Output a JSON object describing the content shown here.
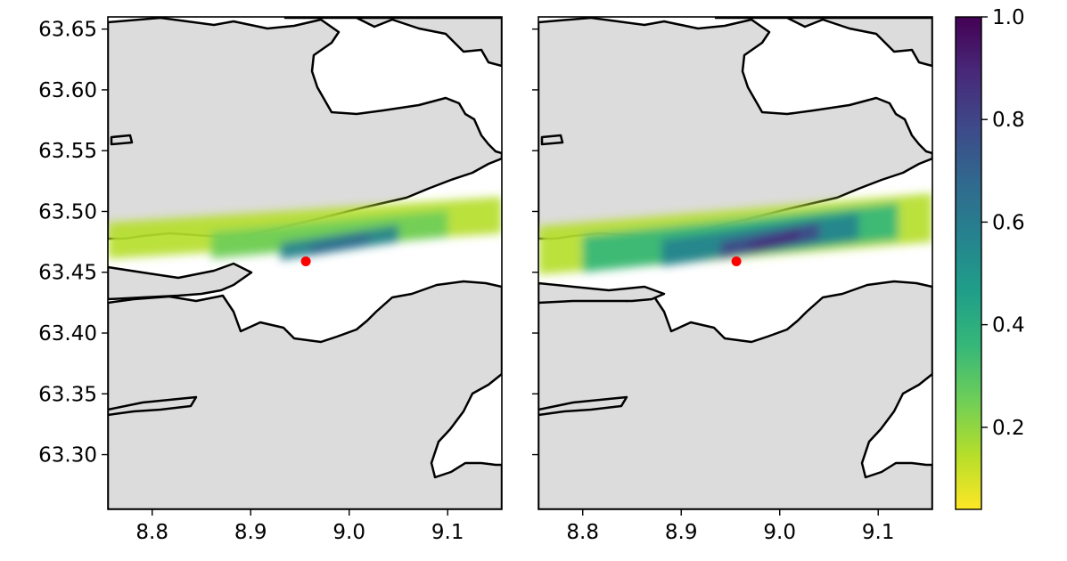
{
  "chart_data": [
    {
      "type": "heatmap",
      "panel": "left",
      "xlim": [
        8.755,
        9.155
      ],
      "ylim": [
        63.255,
        63.66
      ],
      "xticks": [
        8.8,
        8.9,
        9.0,
        9.1
      ],
      "xtick_labels": [
        "8.8",
        "8.9",
        "9.0",
        "9.1"
      ],
      "yticks": [
        63.3,
        63.35,
        63.4,
        63.45,
        63.5,
        63.55,
        63.6,
        63.65
      ],
      "ytick_labels": [
        "63.30",
        "63.35",
        "63.40",
        "63.45",
        "63.50",
        "63.55",
        "63.60",
        "63.65"
      ],
      "ytick_labels_visible": true,
      "land_color": "#dcdcdc",
      "water_color": "#ffffff",
      "coast_color": "#000000",
      "marker": {
        "x": 8.956,
        "y": 63.459,
        "color": "#ff0000"
      },
      "plume": [
        {
          "x0": 8.755,
          "y0": 63.476,
          "x1": 9.155,
          "y1": 63.497,
          "width": 0.03,
          "value": 0.1
        },
        {
          "x0": 8.86,
          "y0": 63.472,
          "x1": 9.1,
          "y1": 63.49,
          "width": 0.022,
          "value": 0.3
        },
        {
          "x0": 8.93,
          "y0": 63.467,
          "x1": 9.05,
          "y1": 63.482,
          "width": 0.014,
          "value": 0.55
        },
        {
          "x0": 8.96,
          "y0": 63.468,
          "x1": 9.02,
          "y1": 63.478,
          "width": 0.008,
          "value": 0.7
        }
      ]
    },
    {
      "type": "heatmap",
      "panel": "right",
      "xlim": [
        8.755,
        9.155
      ],
      "ylim": [
        63.255,
        63.66
      ],
      "xticks": [
        8.8,
        8.9,
        9.0,
        9.1
      ],
      "xtick_labels": [
        "8.8",
        "8.9",
        "9.0",
        "9.1"
      ],
      "yticks": [
        63.3,
        63.35,
        63.4,
        63.45,
        63.5,
        63.55,
        63.6,
        63.65
      ],
      "ytick_labels_visible": false,
      "land_color": "#dcdcdc",
      "water_color": "#ffffff",
      "coast_color": "#000000",
      "marker": {
        "x": 8.956,
        "y": 63.459,
        "color": "#ff0000"
      },
      "plume": [
        {
          "x0": 8.755,
          "y0": 63.468,
          "x1": 9.155,
          "y1": 63.495,
          "width": 0.04,
          "value": 0.15
        },
        {
          "x0": 8.8,
          "y0": 63.465,
          "x1": 9.12,
          "y1": 63.492,
          "width": 0.03,
          "value": 0.35
        },
        {
          "x0": 8.88,
          "y0": 63.466,
          "x1": 9.08,
          "y1": 63.488,
          "width": 0.022,
          "value": 0.55
        },
        {
          "x0": 8.94,
          "y0": 63.468,
          "x1": 9.04,
          "y1": 63.484,
          "width": 0.014,
          "value": 0.78
        },
        {
          "x0": 8.97,
          "y0": 63.47,
          "x1": 9.02,
          "y1": 63.481,
          "width": 0.008,
          "value": 0.9
        }
      ]
    }
  ],
  "colorbar": {
    "colormap": "viridis_r",
    "range": [
      0.04,
      1.0
    ],
    "ticks": [
      0.2,
      0.4,
      0.6,
      0.8,
      1.0
    ],
    "tick_labels": [
      "0.2",
      "0.4",
      "0.6",
      "0.8",
      "1.0"
    ],
    "colors": [
      "#fde725",
      "#b5de2b",
      "#6ece58",
      "#35b779",
      "#1f9e89",
      "#26828e",
      "#31688e",
      "#3e4989",
      "#482878",
      "#440154"
    ]
  }
}
